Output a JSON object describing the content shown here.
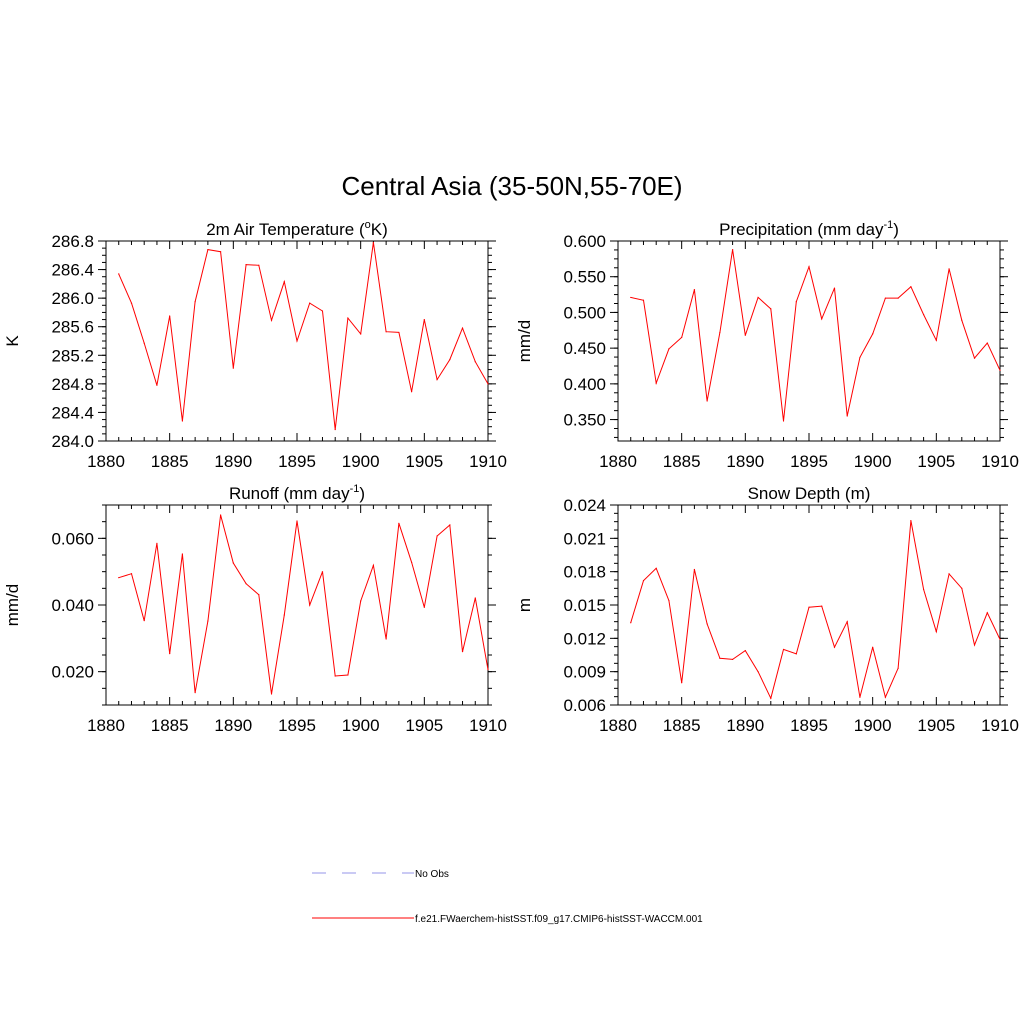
{
  "title": "Central Asia (35-50N,55-70E)",
  "colors": {
    "model": "#ff0000",
    "obs": "#aaaaee",
    "axis": "#000000"
  },
  "legend": {
    "obs_label": "No Obs",
    "model_label": "f.e21.FWaerchem-histSST.f09_g17.CMIP6-histSST-WACCM.001"
  },
  "chart_data": [
    {
      "type": "line",
      "title_main": "2m Air Temperature (",
      "title_sup": "o",
      "title_tail": "K)",
      "ylabel": "K",
      "xlim": [
        1880,
        1910
      ],
      "ylim": [
        284.0,
        286.8
      ],
      "xticks": [
        1880,
        1885,
        1890,
        1895,
        1900,
        1905,
        1910
      ],
      "yticks": [
        "284.0",
        "284.4",
        "284.8",
        "285.2",
        "285.6",
        "286.0",
        "286.4",
        "286.8"
      ],
      "ytick_values": [
        284.0,
        284.4,
        284.8,
        285.2,
        285.6,
        286.0,
        286.4,
        286.8
      ],
      "x": [
        1881,
        1882,
        1883,
        1884,
        1885,
        1886,
        1887,
        1888,
        1889,
        1890,
        1891,
        1892,
        1893,
        1894,
        1895,
        1896,
        1897,
        1898,
        1899,
        1900,
        1901,
        1902,
        1903,
        1904,
        1905,
        1906,
        1907,
        1908,
        1909,
        1910
      ],
      "values": [
        286.34,
        285.93,
        285.37,
        284.78,
        285.75,
        284.28,
        285.95,
        286.68,
        286.65,
        285.02,
        286.47,
        286.46,
        285.69,
        286.23,
        285.4,
        285.93,
        285.82,
        284.16,
        285.72,
        285.5,
        286.78,
        285.53,
        285.52,
        284.69,
        285.7,
        284.86,
        285.14,
        285.58,
        285.11,
        284.8
      ]
    },
    {
      "type": "line",
      "title_main": "Precipitation (mm day",
      "title_sup": "-1",
      "title_tail": ")",
      "ylabel": "mm/d",
      "xlim": [
        1880,
        1910
      ],
      "ylim": [
        0.32,
        0.6
      ],
      "xticks": [
        1880,
        1885,
        1890,
        1895,
        1900,
        1905,
        1910
      ],
      "yticks": [
        "0.350",
        "0.400",
        "0.450",
        "0.500",
        "0.550",
        "0.600"
      ],
      "ytick_values": [
        0.35,
        0.4,
        0.45,
        0.5,
        0.55,
        0.6
      ],
      "x": [
        1881,
        1882,
        1883,
        1884,
        1885,
        1886,
        1887,
        1888,
        1889,
        1890,
        1891,
        1892,
        1893,
        1894,
        1895,
        1896,
        1897,
        1898,
        1899,
        1900,
        1901,
        1902,
        1903,
        1904,
        1905,
        1906,
        1907,
        1908,
        1909,
        1910
      ],
      "values": [
        0.521,
        0.517,
        0.401,
        0.449,
        0.465,
        0.532,
        0.376,
        0.472,
        0.588,
        0.468,
        0.521,
        0.505,
        0.348,
        0.515,
        0.564,
        0.491,
        0.534,
        0.355,
        0.437,
        0.47,
        0.52,
        0.52,
        0.536,
        0.497,
        0.461,
        0.561,
        0.489,
        0.436,
        0.457,
        0.419
      ]
    },
    {
      "type": "line",
      "title_main": "Runoff (mm day",
      "title_sup": "-1",
      "title_tail": ")",
      "ylabel": "mm/d",
      "xlim": [
        1880,
        1910
      ],
      "ylim": [
        0.01,
        0.07
      ],
      "xticks": [
        1880,
        1885,
        1890,
        1895,
        1900,
        1905,
        1910
      ],
      "yticks": [
        "0.020",
        "0.040",
        "0.060"
      ],
      "ytick_values": [
        0.02,
        0.04,
        0.06
      ],
      "x": [
        1881,
        1882,
        1883,
        1884,
        1885,
        1886,
        1887,
        1888,
        1889,
        1890,
        1891,
        1892,
        1893,
        1894,
        1895,
        1896,
        1897,
        1898,
        1899,
        1900,
        1901,
        1902,
        1903,
        1904,
        1905,
        1906,
        1907,
        1908,
        1909,
        1910
      ],
      "values": [
        0.0482,
        0.0494,
        0.0353,
        0.0585,
        0.0254,
        0.0553,
        0.0137,
        0.0352,
        0.067,
        0.0526,
        0.0464,
        0.0431,
        0.0133,
        0.037,
        0.0652,
        0.04,
        0.05,
        0.0187,
        0.019,
        0.0412,
        0.0519,
        0.0298,
        0.0645,
        0.0528,
        0.0393,
        0.0607,
        0.064,
        0.026,
        0.0421,
        0.0206
      ]
    },
    {
      "type": "line",
      "title_main": "Snow Depth (m)",
      "title_sup": "",
      "title_tail": "",
      "ylabel": "m",
      "xlim": [
        1880,
        1910
      ],
      "ylim": [
        0.006,
        0.024
      ],
      "xticks": [
        1880,
        1885,
        1890,
        1895,
        1900,
        1905,
        1910
      ],
      "yticks": [
        "0.006",
        "0.009",
        "0.012",
        "0.015",
        "0.018",
        "0.021",
        "0.024"
      ],
      "ytick_values": [
        0.006,
        0.009,
        0.012,
        0.015,
        0.018,
        0.021,
        0.024
      ],
      "x": [
        1881,
        1882,
        1883,
        1884,
        1885,
        1886,
        1887,
        1888,
        1889,
        1890,
        1891,
        1892,
        1893,
        1894,
        1895,
        1896,
        1897,
        1898,
        1899,
        1900,
        1901,
        1902,
        1903,
        1904,
        1905,
        1906,
        1907,
        1908,
        1909,
        1910
      ],
      "values": [
        0.0134,
        0.0172,
        0.0183,
        0.0154,
        0.008,
        0.0182,
        0.0133,
        0.0102,
        0.0101,
        0.0109,
        0.009,
        0.0066,
        0.011,
        0.0106,
        0.0148,
        0.0149,
        0.0112,
        0.0135,
        0.0067,
        0.0112,
        0.0067,
        0.0093,
        0.0226,
        0.0164,
        0.0126,
        0.0178,
        0.0165,
        0.0114,
        0.0143,
        0.0119
      ]
    }
  ]
}
